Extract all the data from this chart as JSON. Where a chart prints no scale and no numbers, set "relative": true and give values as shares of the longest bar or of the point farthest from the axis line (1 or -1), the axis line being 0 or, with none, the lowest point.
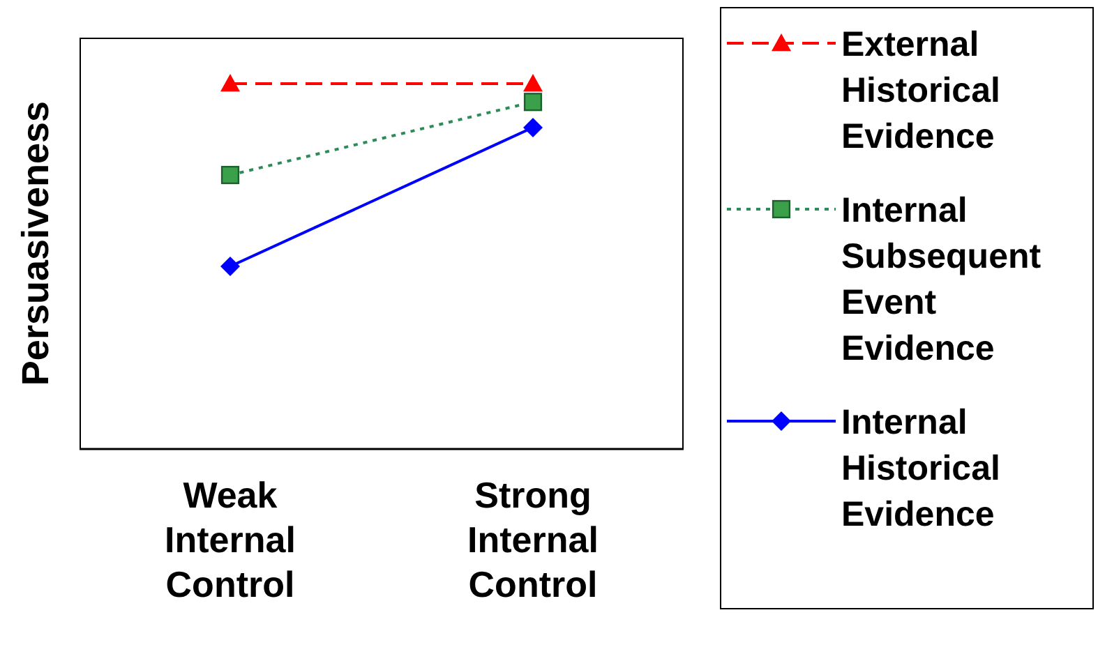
{
  "chart_data": {
    "type": "line",
    "relative": true,
    "ylabel": "Persuasiveness",
    "categories": [
      "Weak Internal Control",
      "Strong Internal Control"
    ],
    "legend": "right",
    "series": [
      {
        "name": "External Historical Evidence",
        "color": "#ff0000",
        "values": [
          1,
          1
        ],
        "marker": "triangle",
        "line_style": "dashed"
      },
      {
        "name": "Internal Subsequent Event Evidence",
        "color": "#2e8b57",
        "values": [
          0.75,
          0.95
        ],
        "marker": "square",
        "line_style": "dotted"
      },
      {
        "name": "Internal Historical Evidence",
        "color": "#0000ff",
        "values": [
          0.5,
          0.88
        ],
        "marker": "diamond",
        "line_style": "solid"
      }
    ]
  }
}
